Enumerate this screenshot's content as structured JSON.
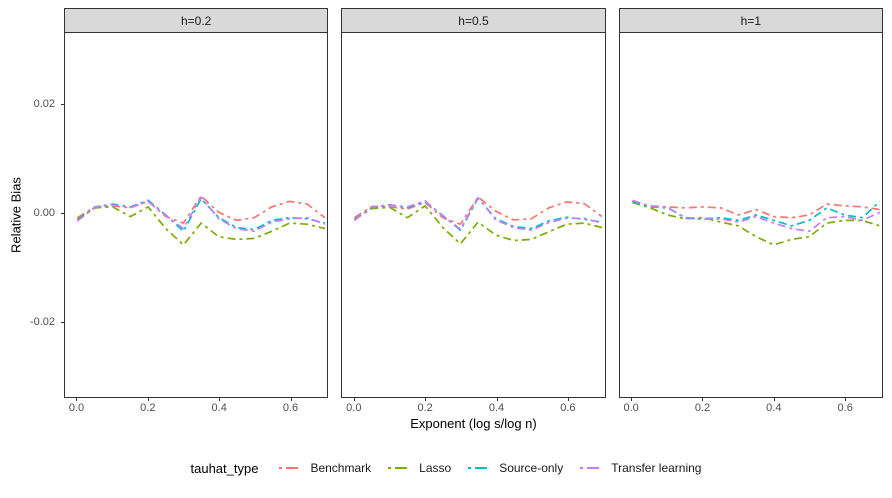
{
  "figure": {
    "y_axis_title": "Relative Bias",
    "x_axis_title": "Exponent (log s/log n)",
    "legend_title": "tauhat_type"
  },
  "style": {
    "strip_fill": "#D9D9D9",
    "panel_border": "#333333",
    "axis_text_color": "#4D4D4D",
    "background": "#FFFFFF"
  },
  "chart_data": {
    "type": "line",
    "title": "",
    "xlabel": "Exponent (log s/log n)",
    "ylabel": "Relative Bias",
    "xlim": [
      -0.035,
      0.706
    ],
    "ylim": [
      -0.034,
      0.033
    ],
    "x_tick_values": [
      0.0,
      0.2,
      0.4,
      0.6
    ],
    "x_tick_labels": [
      "0.0",
      "0.2",
      "0.4",
      "0.6"
    ],
    "y_tick_values": [
      0.02,
      0.0,
      -0.02
    ],
    "y_tick_labels": [
      "0.02",
      "0.00",
      "-0.02"
    ],
    "grid": false,
    "legend_position": "bottom",
    "linetype": "twodash",
    "x": [
      0.0,
      0.05,
      0.1,
      0.15,
      0.2,
      0.25,
      0.3,
      0.35,
      0.4,
      0.45,
      0.5,
      0.55,
      0.6,
      0.65,
      0.7
    ],
    "legend": [
      {
        "label": "Benchmark",
        "color": "#F8766D"
      },
      {
        "label": "Lasso",
        "color": "#7CAE00"
      },
      {
        "label": "Source-only",
        "color": "#00BFC4"
      },
      {
        "label": "Transfer learning",
        "color": "#C77CFF"
      }
    ],
    "facets": [
      {
        "label": "h=0.2",
        "series": [
          {
            "name": "Benchmark",
            "color": "#F8766D",
            "values": [
              -0.001,
              0.001,
              0.0012,
              0.0008,
              0.002,
              -0.0008,
              -0.002,
              0.003,
              0.0,
              -0.0015,
              -0.001,
              0.001,
              0.002,
              0.0015,
              -0.001
            ]
          },
          {
            "name": "Lasso",
            "color": "#7CAE00",
            "values": [
              -0.0012,
              0.0008,
              0.001,
              -0.0008,
              0.001,
              -0.003,
              -0.006,
              -0.002,
              -0.0045,
              -0.005,
              -0.0048,
              -0.0035,
              -0.002,
              -0.0022,
              -0.003
            ]
          },
          {
            "name": "Source-only",
            "color": "#00BFC4",
            "values": [
              -0.0015,
              0.001,
              0.0015,
              0.001,
              0.0022,
              -0.0005,
              -0.0035,
              0.0025,
              -0.001,
              -0.0028,
              -0.0032,
              -0.0015,
              -0.001,
              -0.0012,
              -0.002
            ]
          },
          {
            "name": "Transfer learning",
            "color": "#C77CFF",
            "values": [
              -0.0016,
              0.0009,
              0.0014,
              0.0009,
              0.002,
              -0.0006,
              -0.003,
              0.0028,
              -0.0012,
              -0.003,
              -0.0035,
              -0.0018,
              -0.0012,
              -0.001,
              -0.0022
            ]
          }
        ]
      },
      {
        "label": "h=0.5",
        "series": [
          {
            "name": "Benchmark",
            "color": "#F8766D",
            "values": [
              -0.001,
              0.0011,
              0.001,
              0.0006,
              0.0018,
              -0.001,
              -0.0022,
              0.0028,
              0.0002,
              -0.0014,
              -0.0012,
              0.0008,
              0.0019,
              0.0016,
              -0.0008
            ]
          },
          {
            "name": "Lasso",
            "color": "#7CAE00",
            "values": [
              -0.0013,
              0.0007,
              0.0009,
              -0.001,
              0.0012,
              -0.0028,
              -0.0058,
              -0.0018,
              -0.0042,
              -0.0052,
              -0.005,
              -0.0036,
              -0.0022,
              -0.002,
              -0.0028
            ]
          },
          {
            "name": "Source-only",
            "color": "#00BFC4",
            "values": [
              -0.0014,
              0.0009,
              0.0014,
              0.0008,
              0.002,
              -0.0006,
              -0.0033,
              0.0026,
              -0.0012,
              -0.0026,
              -0.003,
              -0.0016,
              -0.0009,
              -0.0013,
              -0.0018
            ]
          },
          {
            "name": "Transfer learning",
            "color": "#C77CFF",
            "values": [
              -0.0015,
              0.001,
              0.0013,
              0.001,
              0.0021,
              -0.0007,
              -0.0031,
              0.0027,
              -0.0014,
              -0.0028,
              -0.0033,
              -0.0019,
              -0.0011,
              -0.0011,
              -0.002
            ]
          }
        ]
      },
      {
        "label": "h=1",
        "series": [
          {
            "name": "Benchmark",
            "color": "#F8766D",
            "values": [
              0.002,
              0.0012,
              0.001,
              0.0008,
              0.001,
              0.0008,
              -0.0005,
              0.0005,
              -0.0008,
              -0.001,
              -0.0005,
              0.0015,
              0.0012,
              0.001,
              0.0005
            ]
          },
          {
            "name": "Lasso",
            "color": "#7CAE00",
            "values": [
              0.0018,
              0.0008,
              -0.0005,
              -0.0012,
              -0.001,
              -0.0018,
              -0.0025,
              -0.0045,
              -0.006,
              -0.005,
              -0.0045,
              -0.002,
              -0.0015,
              -0.0015,
              -0.0025
            ]
          },
          {
            "name": "Source-only",
            "color": "#00BFC4",
            "values": [
              0.002,
              0.001,
              0.0008,
              -0.001,
              -0.0012,
              -0.001,
              -0.0015,
              -0.0005,
              -0.0015,
              -0.0025,
              -0.0015,
              0.0008,
              -0.0005,
              -0.001,
              0.002
            ]
          },
          {
            "name": "Transfer learning",
            "color": "#C77CFF",
            "values": [
              0.0022,
              0.0011,
              0.0009,
              -0.0011,
              -0.0013,
              -0.0012,
              -0.0018,
              -0.0008,
              -0.002,
              -0.003,
              -0.0035,
              -0.001,
              -0.0008,
              -0.0015,
              0.0
            ]
          }
        ]
      }
    ]
  }
}
